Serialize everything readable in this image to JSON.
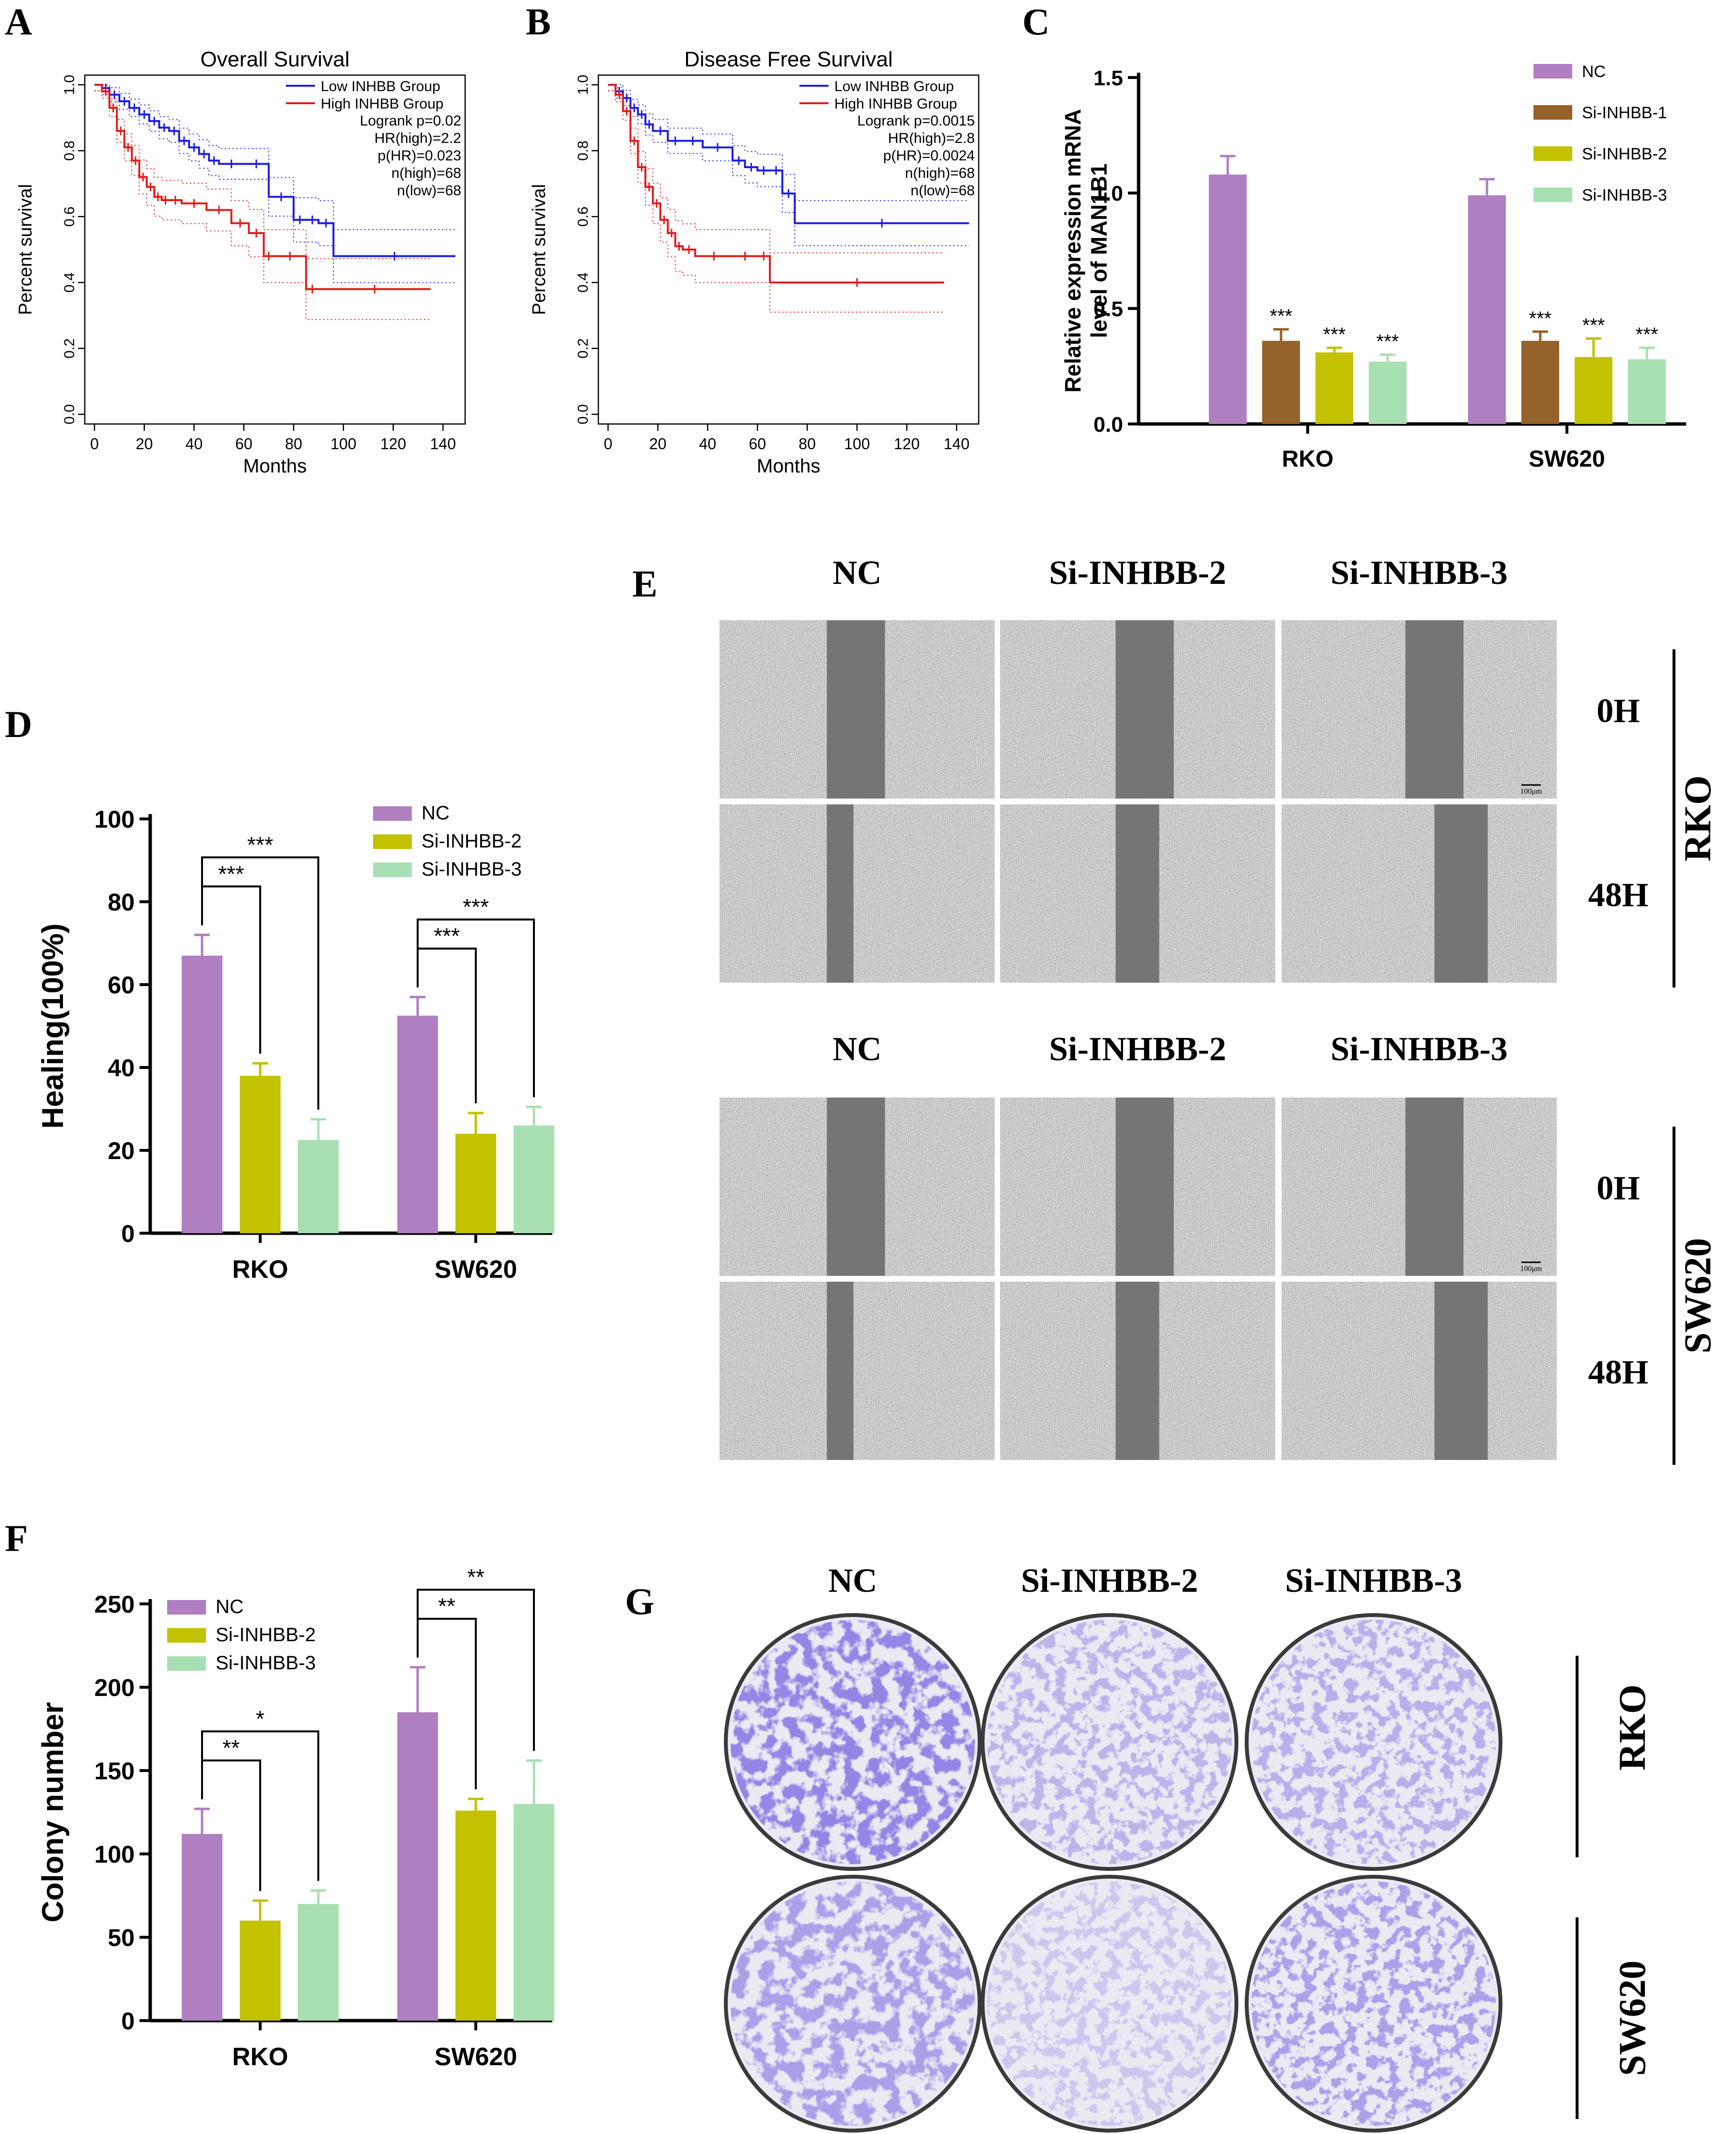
{
  "panel_labels": [
    "A",
    "B",
    "C",
    "D",
    "E",
    "F",
    "G"
  ],
  "colors": {
    "nc": "#b07fc2",
    "si1": "#94622a",
    "si2": "#c2c200",
    "si3": "#a8e0b4",
    "low": "#1c1ce6",
    "high": "#e01b1b",
    "axis": "#000000",
    "plate": "#4a3fc0"
  },
  "chart_data": [
    {
      "id": "A",
      "type": "line",
      "title": "Overall Survival",
      "xlabel": "Months",
      "ylabel": "Percent survival",
      "xlim": [
        0,
        145
      ],
      "ylim": [
        0,
        1.0
      ],
      "xticks": [
        0,
        20,
        40,
        60,
        80,
        100,
        120,
        140
      ],
      "yticks": [
        "0.0",
        "0.2",
        "0.4",
        "0.6",
        "0.8",
        "1.0"
      ],
      "legend": [
        "Low INHBB Group",
        "High INHBB Group"
      ],
      "stats": [
        "Logrank p=0.02",
        "HR(high)=2.2",
        "p(HR)=0.023",
        "n(high)=68",
        "n(low)=68"
      ],
      "series": [
        {
          "name": "Low INHBB Group",
          "color": "#1c1ce6",
          "x": [
            0,
            3,
            6,
            10,
            14,
            18,
            22,
            26,
            30,
            34,
            38,
            42,
            46,
            50,
            60,
            70,
            80,
            85,
            90,
            96,
            145
          ],
          "y": [
            1.0,
            0.99,
            0.97,
            0.95,
            0.93,
            0.91,
            0.89,
            0.87,
            0.86,
            0.83,
            0.81,
            0.79,
            0.77,
            0.76,
            0.76,
            0.66,
            0.59,
            0.59,
            0.58,
            0.48,
            0.48
          ]
        },
        {
          "name": "High INHBB Group",
          "color": "#e01b1b",
          "x": [
            0,
            3,
            6,
            9,
            12,
            15,
            18,
            21,
            24,
            27,
            30,
            35,
            45,
            55,
            62,
            68,
            72,
            85,
            90,
            135
          ],
          "y": [
            1.0,
            0.98,
            0.93,
            0.86,
            0.81,
            0.77,
            0.72,
            0.69,
            0.66,
            0.65,
            0.65,
            0.64,
            0.62,
            0.58,
            0.55,
            0.48,
            0.48,
            0.38,
            0.38,
            0.38
          ]
        }
      ]
    },
    {
      "id": "B",
      "type": "line",
      "title": "Disease Free Survival",
      "xlabel": "Months",
      "ylabel": "Percent survival",
      "xlim": [
        0,
        145
      ],
      "ylim": [
        0,
        1.0
      ],
      "xticks": [
        0,
        20,
        40,
        60,
        80,
        100,
        120,
        140
      ],
      "yticks": [
        "0.0",
        "0.2",
        "0.4",
        "0.6",
        "0.8",
        "1.0"
      ],
      "legend": [
        "Low INHBB Group",
        "High INHBB Group"
      ],
      "stats": [
        "Logrank p=0.0015",
        "HR(high)=2.8",
        "p(HR)=0.0024",
        "n(high)=68",
        "n(low)=68"
      ],
      "series": [
        {
          "name": "Low INHBB Group",
          "color": "#1c1ce6",
          "x": [
            0,
            3,
            6,
            9,
            12,
            15,
            18,
            24,
            30,
            38,
            50,
            55,
            60,
            65,
            70,
            75,
            145
          ],
          "y": [
            1.0,
            0.98,
            0.96,
            0.93,
            0.91,
            0.88,
            0.86,
            0.83,
            0.83,
            0.81,
            0.77,
            0.75,
            0.74,
            0.74,
            0.67,
            0.58,
            0.58
          ]
        },
        {
          "name": "High INHBB Group",
          "color": "#e01b1b",
          "x": [
            0,
            3,
            6,
            9,
            12,
            15,
            18,
            21,
            24,
            27,
            30,
            35,
            50,
            60,
            65,
            135
          ],
          "y": [
            1.0,
            0.97,
            0.92,
            0.83,
            0.75,
            0.69,
            0.64,
            0.59,
            0.55,
            0.51,
            0.5,
            0.48,
            0.48,
            0.48,
            0.4,
            0.4
          ]
        }
      ]
    },
    {
      "id": "C",
      "type": "bar",
      "ylabel": "Relative expression mRNA level of MAN1B1",
      "ylabel_lines": [
        "Relative expression mRNA",
        "level of MAN1B1"
      ],
      "categories": [
        "RKO",
        "SW620"
      ],
      "yticks": [
        "0.0",
        "0.5",
        "1.0",
        "1.5"
      ],
      "ylim": [
        0,
        1.5
      ],
      "legend": [
        "NC",
        "Si-INHBB-1",
        "Si-INHBB-2",
        "Si-INHBB-3"
      ],
      "significance": "***",
      "series": [
        {
          "name": "NC",
          "color": "#b07fc2",
          "values": [
            1.08,
            0.99
          ],
          "errors": [
            0.08,
            0.07
          ]
        },
        {
          "name": "Si-INHBB-1",
          "color": "#94622a",
          "values": [
            0.36,
            0.36
          ],
          "errors": [
            0.05,
            0.04
          ]
        },
        {
          "name": "Si-INHBB-2",
          "color": "#c2c200",
          "values": [
            0.31,
            0.29
          ],
          "errors": [
            0.02,
            0.08
          ]
        },
        {
          "name": "Si-INHBB-3",
          "color": "#a8e0b4",
          "values": [
            0.27,
            0.28
          ],
          "errors": [
            0.03,
            0.05
          ]
        }
      ]
    },
    {
      "id": "D",
      "type": "bar",
      "ylabel": "Healing(100%)",
      "categories": [
        "RKO",
        "SW620"
      ],
      "yticks": [
        "0",
        "20",
        "40",
        "60",
        "80",
        "100"
      ],
      "ylim": [
        0,
        100
      ],
      "legend": [
        "NC",
        "Si-INHBB-2",
        "Si-INHBB-3"
      ],
      "brackets": [
        "***",
        "***",
        "***",
        "***"
      ],
      "series": [
        {
          "name": "NC",
          "color": "#b07fc2",
          "values": [
            67,
            52.5
          ],
          "errors": [
            5,
            4.5
          ]
        },
        {
          "name": "Si-INHBB-2",
          "color": "#c2c200",
          "values": [
            38,
            24
          ],
          "errors": [
            3,
            5
          ]
        },
        {
          "name": "Si-INHBB-3",
          "color": "#a8e0b4",
          "values": [
            22.5,
            26
          ],
          "errors": [
            5,
            4.5
          ]
        }
      ]
    },
    {
      "id": "F",
      "type": "bar",
      "ylabel": "Colony number",
      "categories": [
        "RKO",
        "SW620"
      ],
      "yticks": [
        "0",
        "50",
        "100",
        "150",
        "200",
        "250"
      ],
      "ylim": [
        0,
        250
      ],
      "legend": [
        "NC",
        "Si-INHBB-2",
        "Si-INHBB-3"
      ],
      "brackets": [
        "**",
        "*",
        "**",
        "**"
      ],
      "series": [
        {
          "name": "NC",
          "color": "#b07fc2",
          "values": [
            112,
            185
          ],
          "errors": [
            15,
            27
          ]
        },
        {
          "name": "Si-INHBB-2",
          "color": "#c2c200",
          "values": [
            60,
            126
          ],
          "errors": [
            12,
            7
          ]
        },
        {
          "name": "Si-INHBB-3",
          "color": "#a8e0b4",
          "values": [
            70,
            130
          ],
          "errors": [
            8,
            26
          ]
        }
      ]
    }
  ],
  "panel_e": {
    "columns": [
      "NC",
      "Si-INHBB-2",
      "Si-INHBB-3"
    ],
    "rows": [
      "0H",
      "48H"
    ],
    "cell_lines": [
      "RKO",
      "SW620"
    ],
    "scale_bar": "100μm"
  },
  "panel_g": {
    "columns": [
      "NC",
      "Si-INHBB-2",
      "Si-INHBB-3"
    ],
    "cell_lines": [
      "RKO",
      "SW620"
    ]
  }
}
